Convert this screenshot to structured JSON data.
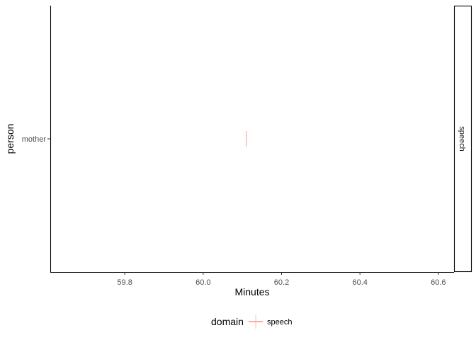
{
  "chart_data": {
    "type": "scatter",
    "title": "",
    "xlabel": "Minutes",
    "ylabel": "person",
    "xlim": [
      59.61,
      60.64
    ],
    "x_ticks": [
      59.8,
      60.0,
      60.2,
      60.4,
      60.6
    ],
    "x_tick_labels": [
      "59.8",
      "60.0",
      "60.2",
      "60.4",
      "60.6"
    ],
    "categories": [
      "mother"
    ],
    "facet_label": "speech",
    "grid": false,
    "legend_position": "bottom",
    "legend_title": "domain",
    "series": [
      {
        "name": "speech",
        "color": "#F8766D",
        "points": [
          {
            "x": 60.11,
            "y": "mother"
          }
        ]
      }
    ]
  }
}
